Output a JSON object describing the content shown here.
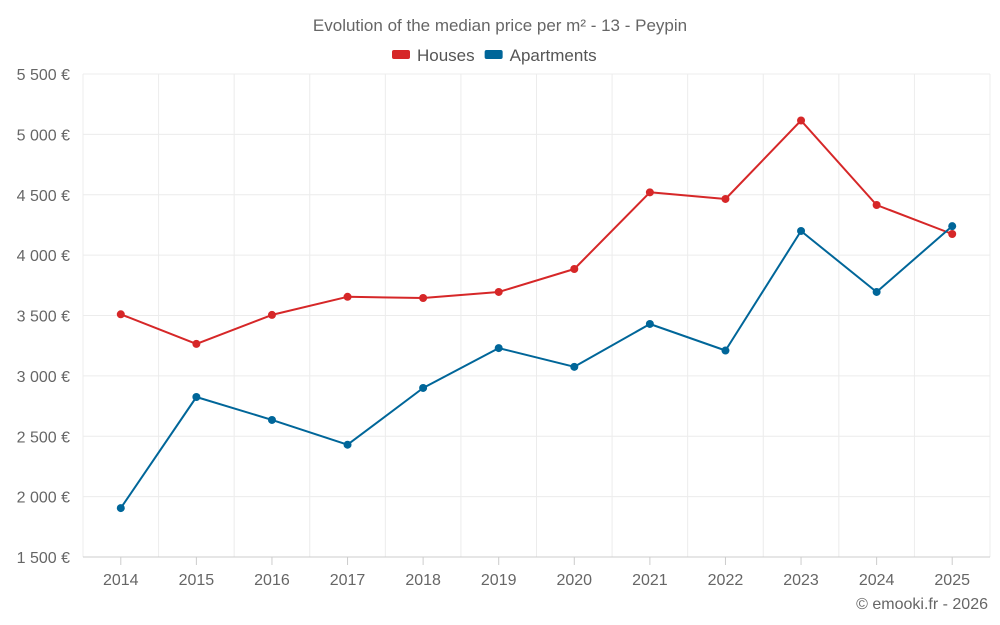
{
  "chart_data": {
    "type": "line",
    "title": "Evolution of the median price per m² - 13 - Peypin",
    "categories": [
      "2014",
      "2015",
      "2016",
      "2017",
      "2018",
      "2019",
      "2020",
      "2021",
      "2022",
      "2023",
      "2024",
      "2025"
    ],
    "series": [
      {
        "name": "Houses",
        "color": "#d62728",
        "values": [
          3510,
          3265,
          3505,
          3655,
          3645,
          3695,
          3885,
          4520,
          4465,
          5115,
          4415,
          4175
        ]
      },
      {
        "name": "Apartments",
        "color": "#006699",
        "values": [
          1905,
          2825,
          2635,
          2430,
          2900,
          3230,
          3075,
          3430,
          3210,
          4200,
          3695,
          4240
        ]
      }
    ],
    "ylim": [
      1500,
      5500
    ],
    "yticks": [
      1500,
      2000,
      2500,
      3000,
      3500,
      4000,
      4500,
      5000,
      5500
    ],
    "ytick_labels": [
      "1 500 €",
      "2 000 €",
      "2 500 €",
      "3 000 €",
      "3 500 €",
      "4 000 €",
      "4 500 €",
      "5 000 €",
      "5 500 €"
    ],
    "xlabel": "",
    "ylabel": "",
    "grid": true,
    "legend": "top-center"
  },
  "credit": "© emooki.fr - 2026"
}
